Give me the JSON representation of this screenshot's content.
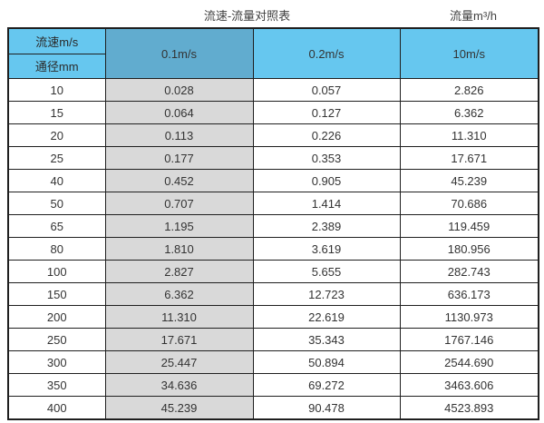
{
  "page": {
    "title": "流速-流量对照表",
    "unit_label": "流量m³/h"
  },
  "colors": {
    "header_blue": "#66c7ef",
    "header_dark_blue": "#61accf",
    "gray_column": "#d9d9d9",
    "border": "#1f1f1f",
    "text": "#333333"
  },
  "chart_data": {
    "type": "table",
    "title": "流速-流量对照表",
    "unit_label": "流量m³/h",
    "row_header_label": "流速m/s",
    "col_header_label": "通径mm",
    "velocity_columns": [
      "0.1m/s",
      "0.2m/s",
      "10m/s"
    ],
    "diameters_mm": [
      "10",
      "15",
      "20",
      "25",
      "40",
      "50",
      "65",
      "80",
      "100",
      "150",
      "200",
      "250",
      "300",
      "350",
      "400"
    ],
    "flow_rows": [
      [
        "0.028",
        "0.057",
        "2.826"
      ],
      [
        "0.064",
        "0.127",
        "6.362"
      ],
      [
        "0.113",
        "0.226",
        "11.310"
      ],
      [
        "0.177",
        "0.353",
        "17.671"
      ],
      [
        "0.452",
        "0.905",
        "45.239"
      ],
      [
        "0.707",
        "1.414",
        "70.686"
      ],
      [
        "1.195",
        "2.389",
        "119.459"
      ],
      [
        "1.810",
        "3.619",
        "180.956"
      ],
      [
        "2.827",
        "5.655",
        "282.743"
      ],
      [
        "6.362",
        "12.723",
        "636.173"
      ],
      [
        "11.310",
        "22.619",
        "1130.973"
      ],
      [
        "17.671",
        "35.343",
        "1767.146"
      ],
      [
        "25.447",
        "50.894",
        "2544.690"
      ],
      [
        "34.636",
        "69.272",
        "3463.606"
      ],
      [
        "45.239",
        "90.478",
        "4523.893"
      ]
    ]
  }
}
